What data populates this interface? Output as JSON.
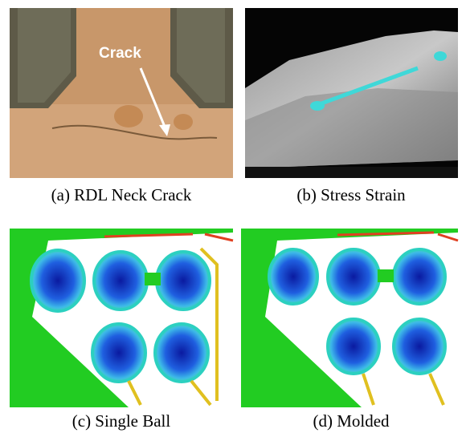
{
  "panels": [
    {
      "image_label": "Crack",
      "caption": "(a) RDL Neck Crack"
    },
    {
      "caption": "(b) Stress Strain"
    },
    {
      "caption": "(c) Single Ball"
    },
    {
      "caption": "(d) Molded"
    }
  ]
}
